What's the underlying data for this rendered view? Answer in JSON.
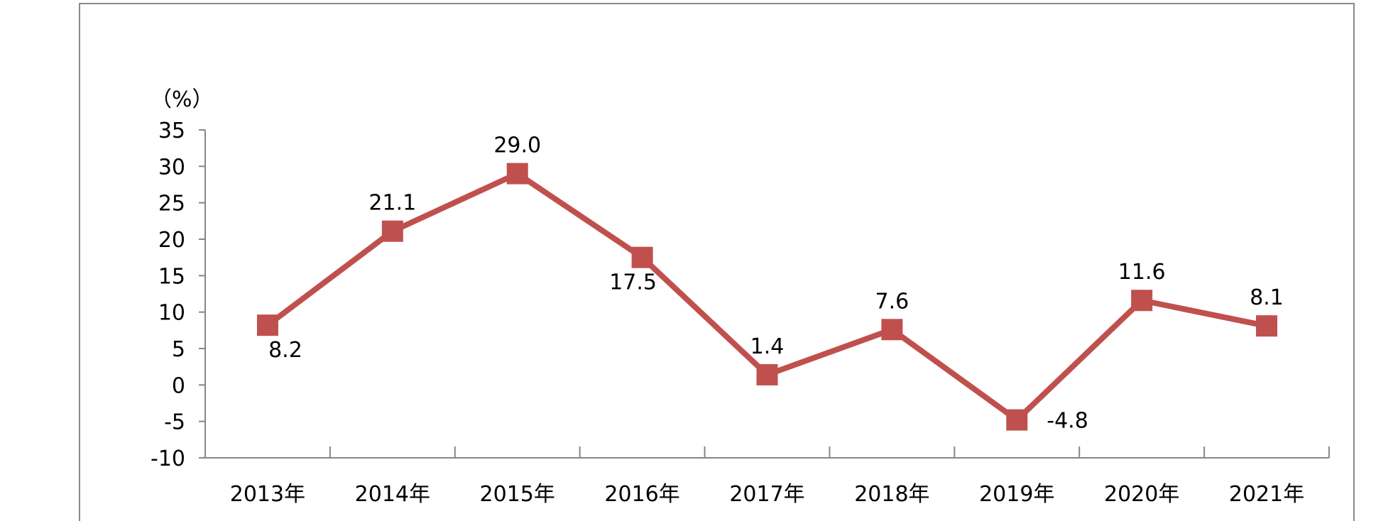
{
  "chart_data": {
    "type": "line",
    "title": "",
    "xlabel": "",
    "ylabel": "（%）",
    "categories": [
      "2013年",
      "2014年",
      "2015年",
      "2016年",
      "2017年",
      "2018年",
      "2019年",
      "2020年",
      "2021年"
    ],
    "series": [
      {
        "values": [
          8.2,
          21.1,
          29.0,
          17.5,
          1.4,
          7.6,
          -4.8,
          11.6,
          8.1
        ],
        "data_labels": [
          "8.2",
          "21.1",
          "29.0",
          "17.5",
          "1.4",
          "7.6",
          "-4.8",
          "11.6",
          "8.1"
        ],
        "label_positions": [
          "below",
          "above",
          "above",
          "below",
          "above",
          "above",
          "right",
          "above",
          "above"
        ],
        "color": "#c0504d",
        "marker": "square"
      }
    ],
    "ylim": [
      -10,
      35
    ],
    "yticks": [
      -10,
      -5,
      0,
      5,
      10,
      15,
      20,
      25,
      30,
      35
    ],
    "ytick_labels": [
      "-10",
      "-5",
      "0",
      "5",
      "10",
      "15",
      "20",
      "25",
      "30",
      "35"
    ],
    "grid": false,
    "legend": "none",
    "axis_color": "#868686"
  }
}
